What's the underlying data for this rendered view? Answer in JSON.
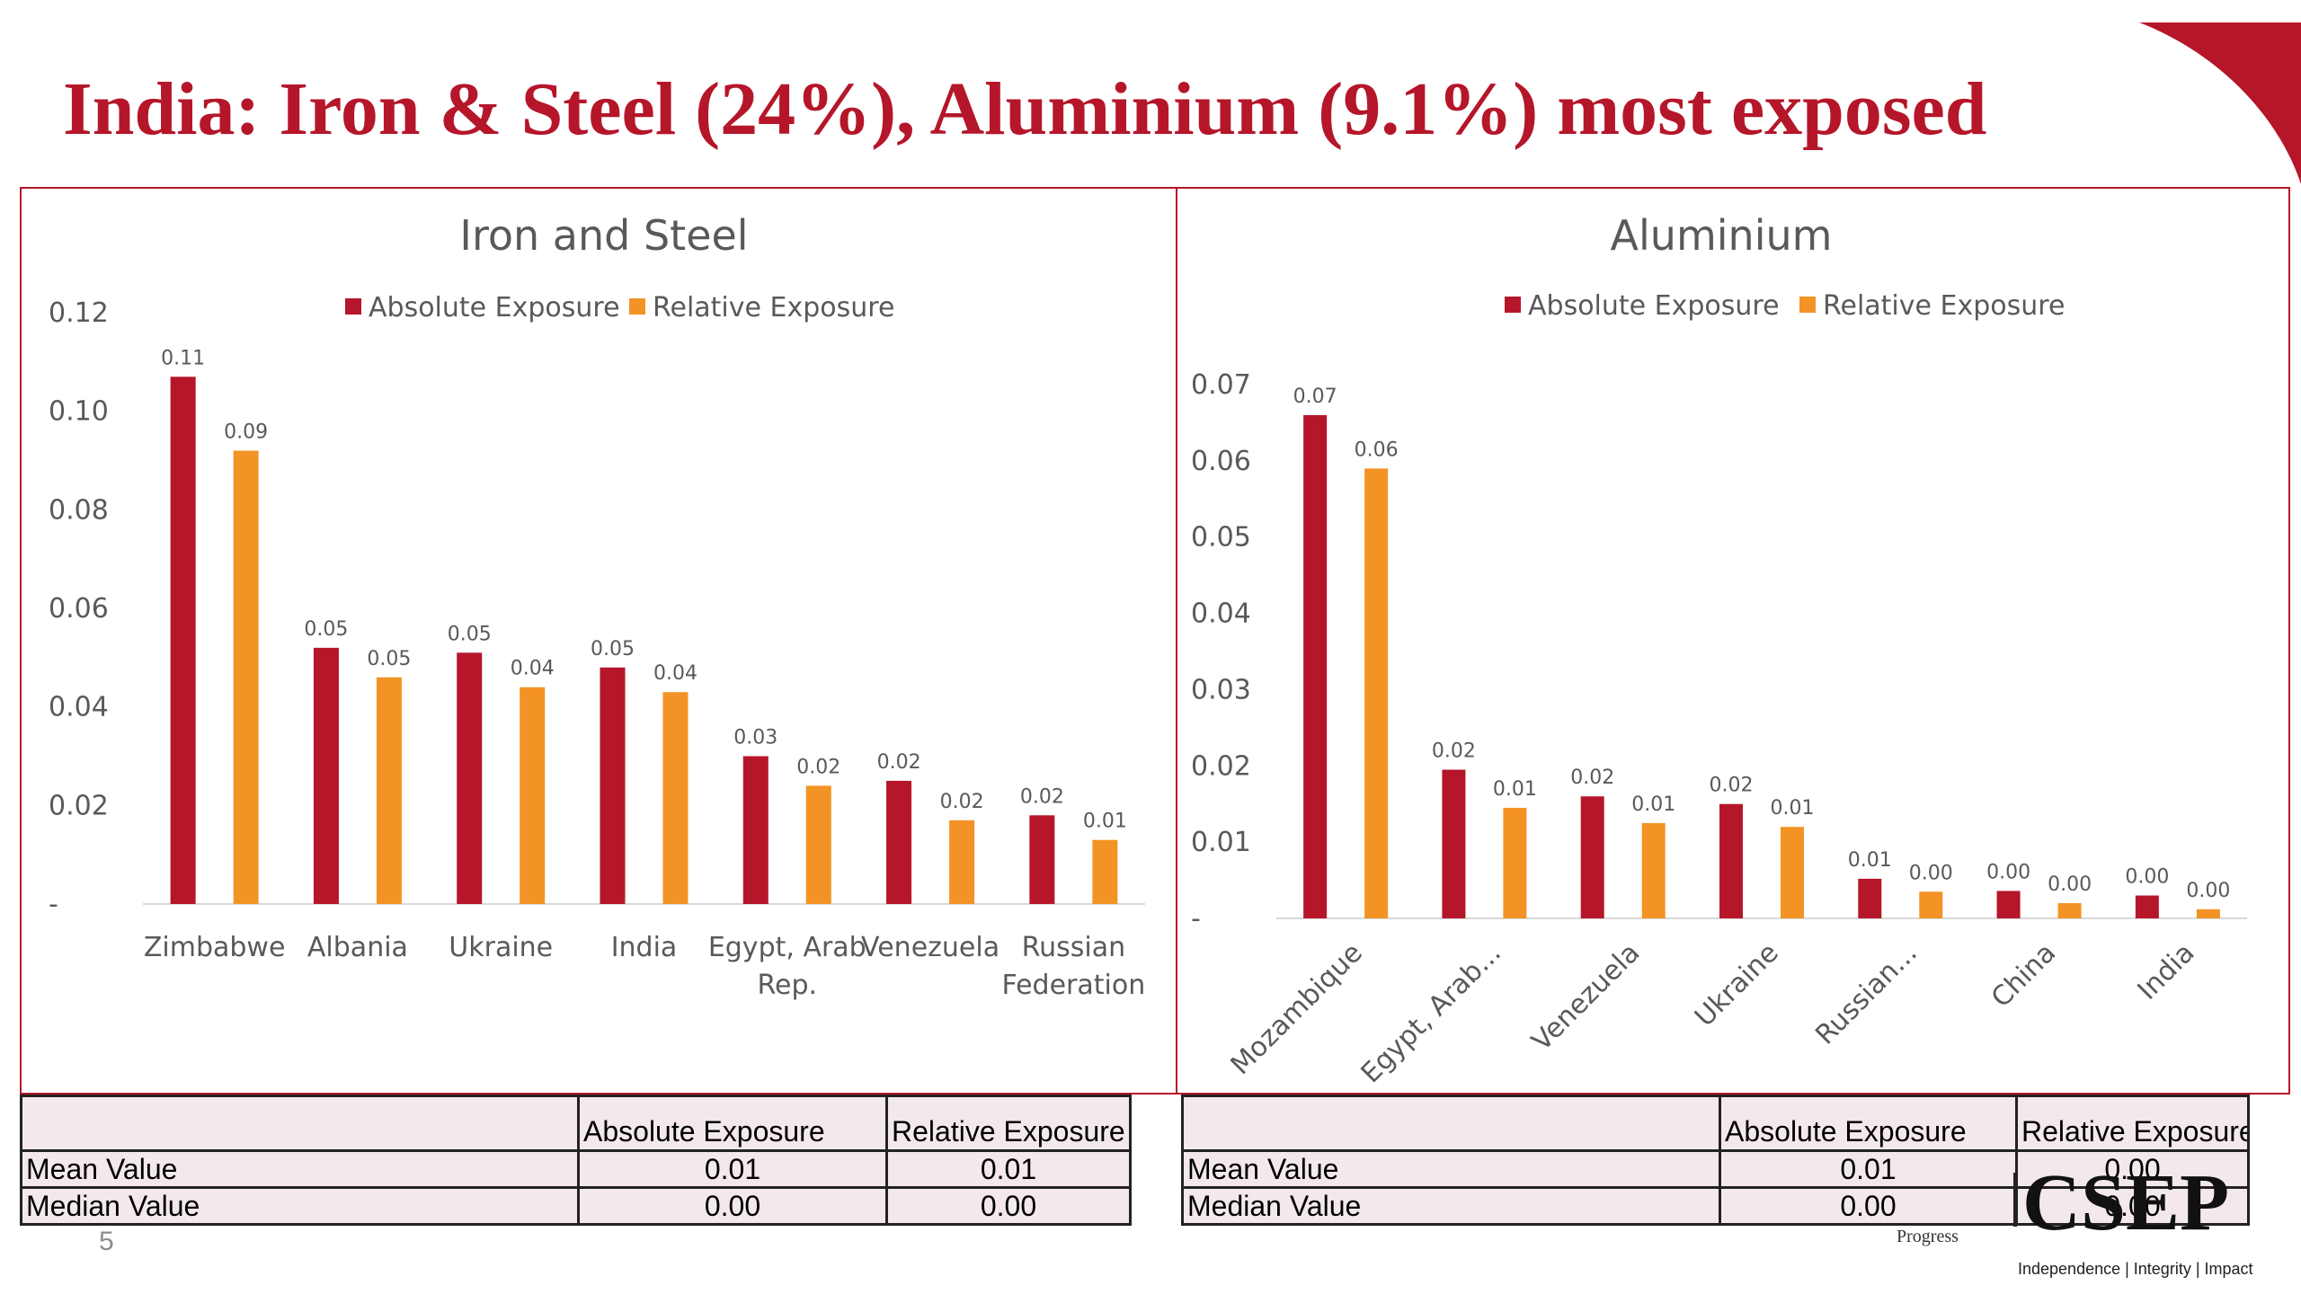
{
  "slide": {
    "title": "India: Iron & Steel (24%), Aluminium (9.1%) most exposed",
    "page_number": "5",
    "logo_text": "CSEP",
    "logo_subtext": "Progress",
    "logo_tagline": "Independence | Integrity | Impact"
  },
  "colors": {
    "absolute": "#b5162a",
    "relative": "#f39325",
    "brand": "#b5162a",
    "text": "#595959",
    "axis": "#d9d9d9"
  },
  "chart_data": [
    {
      "type": "bar",
      "title": "Iron and Steel",
      "legend": [
        "Absolute Exposure",
        "Relative Exposure"
      ],
      "legend_position": "top",
      "categories": [
        "Zimbabwe",
        "Albania",
        "Ukraine",
        "India",
        "Egypt, Arab Rep.",
        "Venezuela",
        "Russian Federation"
      ],
      "series": [
        {
          "name": "Absolute Exposure",
          "values": [
            0.107,
            0.052,
            0.051,
            0.048,
            0.03,
            0.025,
            0.018
          ],
          "labels": [
            "0.11",
            "0.05",
            "0.05",
            "0.05",
            "0.03",
            "0.02",
            "0.02"
          ]
        },
        {
          "name": "Relative Exposure",
          "values": [
            0.092,
            0.046,
            0.044,
            0.043,
            0.024,
            0.017,
            0.013
          ],
          "labels": [
            "0.09",
            "0.05",
            "0.04",
            "0.04",
            "0.02",
            "0.02",
            "0.01"
          ]
        }
      ],
      "ylim": [
        0,
        0.12
      ],
      "yticks": [
        "-",
        "0.02",
        "0.04",
        "0.06",
        "0.08",
        "0.10",
        "0.12"
      ],
      "grid": false
    },
    {
      "type": "bar",
      "title": "Aluminium",
      "legend": [
        "Absolute Exposure",
        "Relative Exposure"
      ],
      "legend_position": "top",
      "categories": [
        "Mozambique",
        "Egypt, Arab...",
        "Venezuela",
        "Ukraine",
        "Russian...",
        "China",
        "India"
      ],
      "series": [
        {
          "name": "Absolute Exposure",
          "values": [
            0.066,
            0.0195,
            0.016,
            0.015,
            0.0052,
            0.0036,
            0.003
          ],
          "labels": [
            "0.07",
            "0.02",
            "0.02",
            "0.02",
            "0.01",
            "0.00",
            "0.00"
          ]
        },
        {
          "name": "Relative Exposure",
          "values": [
            0.059,
            0.0145,
            0.0125,
            0.012,
            0.0035,
            0.002,
            0.0012
          ],
          "labels": [
            "0.06",
            "0.01",
            "0.01",
            "0.01",
            "0.00",
            "0.00",
            "0.00"
          ]
        }
      ],
      "ylim": [
        0,
        0.07
      ],
      "yticks": [
        "-",
        "0.01",
        "0.02",
        "0.03",
        "0.04",
        "0.05",
        "0.06",
        "0.07"
      ],
      "grid": false
    }
  ],
  "tables": {
    "iron": {
      "headers": [
        "",
        "Absolute Exposure",
        "Relative Exposure"
      ],
      "rows": [
        {
          "label": "Mean Value",
          "absolute": "0.01",
          "relative": "0.01"
        },
        {
          "label": "Median Value",
          "absolute": "0.00",
          "relative": "0.00"
        }
      ]
    },
    "aluminium": {
      "headers": [
        "",
        "Absolute Exposure",
        "Relative Exposure"
      ],
      "rows": [
        {
          "label": "Mean Value",
          "absolute": "0.01",
          "relative": "0.00"
        },
        {
          "label": "Median Value",
          "absolute": "0.00",
          "relative": "0.00"
        }
      ]
    }
  }
}
